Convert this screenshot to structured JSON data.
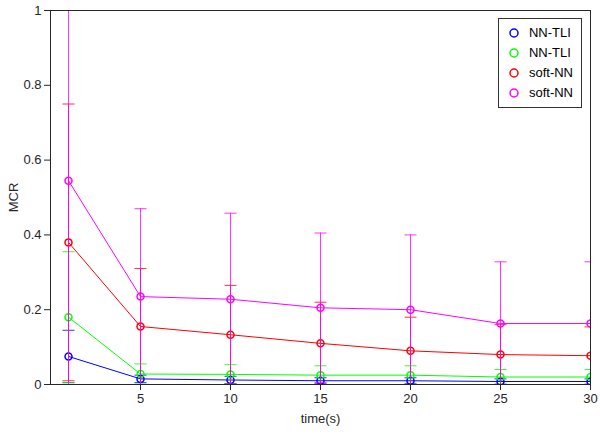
{
  "chart_data": {
    "type": "line",
    "x_label": "time(s)",
    "y_label": "MCR",
    "x": [
      1,
      5,
      10,
      15,
      20,
      25,
      30
    ],
    "xlim": [
      0,
      30
    ],
    "xticks": [
      5,
      10,
      15,
      20,
      25,
      30
    ],
    "ylim": [
      0,
      1
    ],
    "yticks": [
      0,
      0.2,
      0.4,
      0.6,
      0.8,
      1
    ],
    "grid": false,
    "legend": "northeast",
    "marker": "circle",
    "series": [
      {
        "name": "NN-TLI",
        "color": "#0000ff",
        "values": [
          0.075,
          0.015,
          0.012,
          0.01,
          0.01,
          0.008,
          0.008
        ],
        "error": [
          0.07,
          0.01,
          0.01,
          0.008,
          0.008,
          0.007,
          0.007
        ]
      },
      {
        "name": "NN-TLI",
        "color": "#00ff00",
        "values": [
          0.18,
          0.028,
          0.027,
          0.025,
          0.025,
          0.02,
          0.02
        ],
        "error": [
          0.175,
          0.027,
          0.026,
          0.025,
          0.025,
          0.02,
          0.02
        ]
      },
      {
        "name": "soft-NN",
        "color": "#ff0000",
        "values": [
          0.38,
          0.155,
          0.133,
          0.11,
          0.09,
          0.08,
          0.077
        ],
        "error": [
          0.37,
          0.155,
          0.132,
          0.11,
          0.09,
          0.08,
          0.077
        ]
      },
      {
        "name": "soft-NN",
        "color": "#ff00ff",
        "values": [
          0.545,
          0.235,
          0.228,
          0.205,
          0.2,
          0.163,
          0.163
        ],
        "error": [
          0.6,
          0.235,
          0.23,
          0.2,
          0.2,
          0.165,
          0.165
        ]
      }
    ]
  }
}
